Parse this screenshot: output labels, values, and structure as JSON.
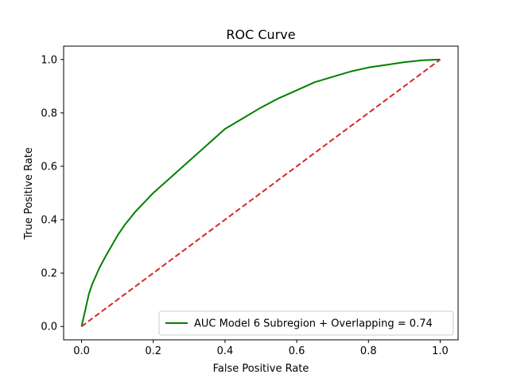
{
  "chart_data": {
    "type": "line",
    "title": "ROC Curve",
    "xlabel": "False Positive Rate",
    "ylabel": "True Positive Rate",
    "xlim": [
      -0.05,
      1.05
    ],
    "ylim": [
      -0.05,
      1.05
    ],
    "xticks": [
      "0.0",
      "0.2",
      "0.4",
      "0.6",
      "0.8",
      "1.0"
    ],
    "yticks": [
      "0.0",
      "0.2",
      "0.4",
      "0.6",
      "0.8",
      "1.0"
    ],
    "grid": false,
    "legend_position": "lower-right",
    "series": [
      {
        "name": "AUC Model 6 Subregion + Overlapping = 0.74",
        "color": "#008000",
        "style": "solid",
        "x": [
          0.0,
          0.005,
          0.01,
          0.02,
          0.03,
          0.05,
          0.07,
          0.1,
          0.12,
          0.15,
          0.2,
          0.25,
          0.3,
          0.35,
          0.4,
          0.45,
          0.5,
          0.55,
          0.6,
          0.65,
          0.7,
          0.75,
          0.8,
          0.85,
          0.9,
          0.95,
          1.0
        ],
        "y": [
          0.0,
          0.03,
          0.06,
          0.12,
          0.16,
          0.22,
          0.27,
          0.34,
          0.38,
          0.43,
          0.5,
          0.56,
          0.62,
          0.68,
          0.74,
          0.78,
          0.82,
          0.855,
          0.885,
          0.915,
          0.935,
          0.955,
          0.97,
          0.98,
          0.99,
          0.997,
          1.0
        ]
      },
      {
        "name": "",
        "color": "#d62728",
        "style": "dashed",
        "x": [
          0.0,
          1.0
        ],
        "y": [
          0.0,
          1.0
        ]
      }
    ]
  }
}
